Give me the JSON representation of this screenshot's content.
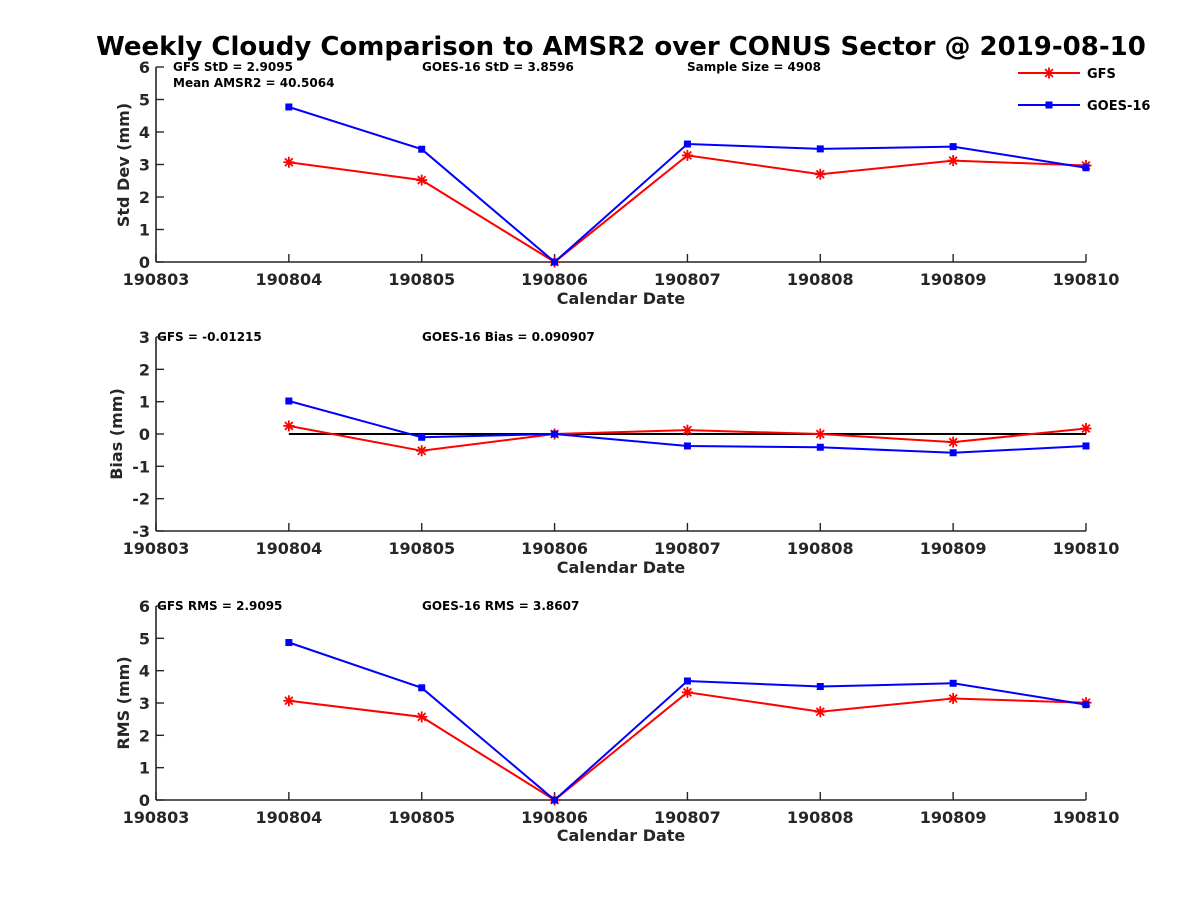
{
  "chart_data": {
    "title": "Weekly Cloudy Comparison to AMSR2 over CONUS Sector @ 2019-08-10",
    "colors": {
      "GFS": "#ff0000",
      "GOES-16": "#0000ff",
      "zero_line": "#000000",
      "axes": "#262626"
    },
    "legend": {
      "placement": "top-right",
      "entries": [
        {
          "name": "GFS",
          "color": "#ff0000",
          "marker": "asterisk"
        },
        {
          "name": "GOES-16",
          "color": "#0000ff",
          "marker": "square"
        }
      ]
    },
    "panels": [
      {
        "type": "line",
        "xlabel": "Calendar Date",
        "ylabel": "Std Dev (mm)",
        "x_tick_labels": [
          "190803",
          "190804",
          "190805",
          "190806",
          "190807",
          "190808",
          "190809",
          "190810"
        ],
        "ylim": [
          0,
          6
        ],
        "y_ticks": [
          0,
          1,
          2,
          3,
          4,
          5,
          6
        ],
        "annotations": [
          "GFS StD = 2.9095",
          "Mean AMSR2 = 40.5064",
          "GOES-16 StD = 3.8596",
          "Sample Size = 4908"
        ],
        "series": [
          {
            "name": "GFS",
            "color": "#ff0000",
            "marker": "asterisk",
            "x": [
              1,
              2,
              3,
              4,
              5,
              6,
              7
            ],
            "values": [
              3.07,
              2.52,
              0.0,
              3.28,
              2.7,
              3.12,
              2.97
            ]
          },
          {
            "name": "GOES-16",
            "color": "#0000ff",
            "marker": "square",
            "x": [
              1,
              2,
              3,
              4,
              5,
              6,
              7
            ],
            "values": [
              4.77,
              3.47,
              0.0,
              3.63,
              3.48,
              3.55,
              2.9
            ]
          }
        ],
        "zero_line": false
      },
      {
        "type": "line",
        "xlabel": "Calendar Date",
        "ylabel": "Bias (mm)",
        "x_tick_labels": [
          "190803",
          "190804",
          "190805",
          "190806",
          "190807",
          "190808",
          "190809",
          "190810"
        ],
        "ylim": [
          -3,
          3
        ],
        "y_ticks": [
          -3,
          -2,
          -1,
          0,
          1,
          2,
          3
        ],
        "annotations": [
          "GFS = -0.01215",
          "GOES-16 Bias  = 0.090907"
        ],
        "series": [
          {
            "name": "GFS",
            "color": "#ff0000",
            "marker": "asterisk",
            "x": [
              1,
              2,
              3,
              4,
              5,
              6,
              7
            ],
            "values": [
              0.25,
              -0.52,
              0.0,
              0.12,
              0.0,
              -0.25,
              0.17
            ]
          },
          {
            "name": "GOES-16",
            "color": "#0000ff",
            "marker": "square",
            "x": [
              1,
              2,
              3,
              4,
              5,
              6,
              7
            ],
            "values": [
              1.02,
              -0.1,
              0.0,
              -0.37,
              -0.41,
              -0.58,
              -0.37
            ]
          }
        ],
        "zero_line": true
      },
      {
        "type": "line",
        "xlabel": "Calendar Date",
        "ylabel": "RMS (mm)",
        "x_tick_labels": [
          "190803",
          "190804",
          "190805",
          "190806",
          "190807",
          "190808",
          "190809",
          "190810"
        ],
        "ylim": [
          0,
          6
        ],
        "y_ticks": [
          0,
          1,
          2,
          3,
          4,
          5,
          6
        ],
        "annotations": [
          "GFS RMS = 2.9095",
          "GOES-16 RMS = 3.8607"
        ],
        "series": [
          {
            "name": "GFS",
            "color": "#ff0000",
            "marker": "asterisk",
            "x": [
              1,
              2,
              3,
              4,
              5,
              6,
              7
            ],
            "values": [
              3.07,
              2.57,
              0.0,
              3.33,
              2.73,
              3.14,
              3.01
            ]
          },
          {
            "name": "GOES-16",
            "color": "#0000ff",
            "marker": "square",
            "x": [
              1,
              2,
              3,
              4,
              5,
              6,
              7
            ],
            "values": [
              4.87,
              3.47,
              0.0,
              3.68,
              3.51,
              3.61,
              2.95
            ]
          }
        ],
        "zero_line": false
      }
    ]
  }
}
